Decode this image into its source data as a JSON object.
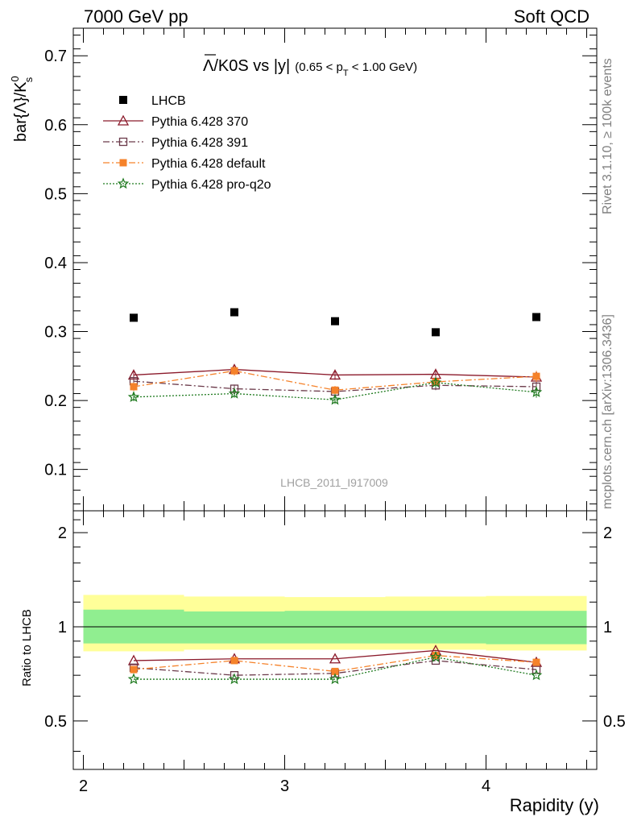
{
  "header": {
    "energy_label": "7000 GeV pp",
    "process_label": "Soft QCD"
  },
  "side_labels": {
    "rivet": "Rivet 3.1.10, ≥ 100k events",
    "mcplots": "mcplots.cern.ch [arXiv:1306.3436]"
  },
  "colors": {
    "data": "#000000",
    "p370": "#8b1a2b",
    "p391": "#6b3a4a",
    "pdefault": "#f5822a",
    "pq2o": "#1f7a1f",
    "band_inner": "#90ee90",
    "band_outer": "#ffff99"
  },
  "chart_data": [
    {
      "type": "scatter",
      "title_bar": "Λ",
      "title_rest": "/K0S vs |y|",
      "title_cut_pre": "(0.65 < p",
      "title_cut_sub": "T",
      "title_cut_post": " < 1.00 GeV)",
      "ylabel": "bar{Λ}/K",
      "ylabel_sup": "0",
      "ylabel_sub": "s",
      "watermark": "LHCB_2011_I917009",
      "xlim": [
        1.95,
        4.55
      ],
      "ylim": [
        0.04,
        0.74
      ],
      "yticks": [
        "0.1",
        "0.2",
        "0.3",
        "0.4",
        "0.5",
        "0.6",
        "0.7"
      ],
      "legend_position": "top-left",
      "x": [
        2.25,
        2.75,
        3.25,
        3.75,
        4.25
      ],
      "series": [
        {
          "name": "LHCB",
          "key": "data",
          "values": [
            0.32,
            0.328,
            0.315,
            0.299,
            0.321
          ],
          "err": [
            0.004,
            0.004,
            0.004,
            0.004,
            0.004
          ]
        },
        {
          "name": "Pythia 6.428 370",
          "key": "p370",
          "values": [
            0.237,
            0.245,
            0.237,
            0.238,
            0.234
          ],
          "err": [
            0.007,
            0.007,
            0.007,
            0.008,
            0.008
          ]
        },
        {
          "name": "Pythia 6.428 391",
          "key": "p391",
          "values": [
            0.228,
            0.217,
            0.213,
            0.222,
            0.22
          ],
          "err": [
            0.006,
            0.006,
            0.006,
            0.007,
            0.008
          ]
        },
        {
          "name": "Pythia 6.428 default",
          "key": "pdefault",
          "values": [
            0.22,
            0.243,
            0.215,
            0.227,
            0.235
          ],
          "err": [
            0.006,
            0.007,
            0.006,
            0.007,
            0.008
          ]
        },
        {
          "name": "Pythia 6.428 pro-q2o",
          "key": "pq2o",
          "values": [
            0.205,
            0.21,
            0.201,
            0.226,
            0.212
          ],
          "err": [
            0.006,
            0.006,
            0.006,
            0.007,
            0.008
          ]
        }
      ]
    },
    {
      "type": "scatter",
      "ylabel": "Ratio to LHCB",
      "xlabel": "Rapidity (y)",
      "xlim": [
        1.95,
        4.55
      ],
      "ylim": [
        0.35,
        2.35
      ],
      "yticks": [
        "0.5",
        "1",
        "2"
      ],
      "xticks": [
        "2",
        "3",
        "4"
      ],
      "bands": [
        {
          "x": [
            2.0,
            2.5
          ],
          "inner": [
            0.885,
            1.135
          ],
          "outer": [
            0.835,
            1.265
          ]
        },
        {
          "x": [
            2.5,
            3.0
          ],
          "inner": [
            0.885,
            1.12
          ],
          "outer": [
            0.845,
            1.25
          ]
        },
        {
          "x": [
            3.0,
            3.5
          ],
          "inner": [
            0.885,
            1.125
          ],
          "outer": [
            0.845,
            1.245
          ]
        },
        {
          "x": [
            3.5,
            4.0
          ],
          "inner": [
            0.885,
            1.125
          ],
          "outer": [
            0.845,
            1.25
          ]
        },
        {
          "x": [
            4.0,
            4.5
          ],
          "inner": [
            0.88,
            1.125
          ],
          "outer": [
            0.84,
            1.255
          ]
        }
      ],
      "x": [
        2.25,
        2.75,
        3.25,
        3.75,
        4.25
      ],
      "series": [
        {
          "name": "Pythia 6.428 370",
          "key": "p370",
          "values": [
            0.78,
            0.79,
            0.79,
            0.84,
            0.77
          ]
        },
        {
          "name": "Pythia 6.428 391",
          "key": "p391",
          "values": [
            0.74,
            0.7,
            0.71,
            0.78,
            0.73
          ]
        },
        {
          "name": "Pythia 6.428 default",
          "key": "pdefault",
          "values": [
            0.73,
            0.78,
            0.72,
            0.81,
            0.77
          ]
        },
        {
          "name": "Pythia 6.428 pro-q2o",
          "key": "pq2o",
          "values": [
            0.68,
            0.68,
            0.68,
            0.8,
            0.7
          ]
        }
      ]
    }
  ]
}
